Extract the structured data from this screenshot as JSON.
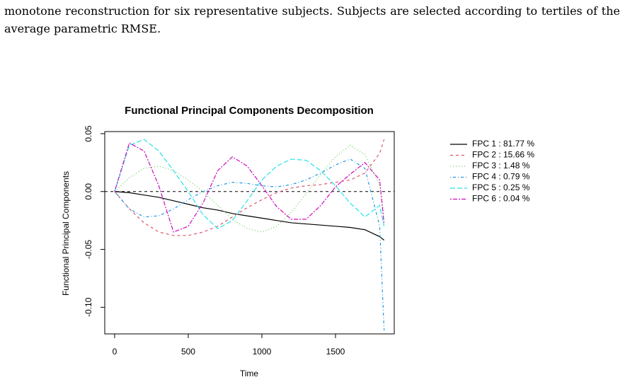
{
  "text": {
    "lines": [
      "monotone reconstruction for six representative subjects. Subjects are selected according to tertiles of the",
      "average parametric RMSE."
    ]
  },
  "chart_data": {
    "type": "line",
    "title": "Functional Principal Components Decomposition",
    "xlabel": "Time",
    "ylabel": "Functional Principal Components",
    "x": [
      0,
      100,
      200,
      300,
      400,
      500,
      600,
      700,
      800,
      900,
      1000,
      1100,
      1200,
      1300,
      1400,
      1500,
      1600,
      1700,
      1800,
      1830
    ],
    "series": [
      {
        "name": "FPC 1 : 81.77 %",
        "color": "#000000",
        "dash": "",
        "values": [
          0,
          -0.001,
          -0.003,
          -0.005,
          -0.008,
          -0.011,
          -0.014,
          -0.016,
          -0.019,
          -0.021,
          -0.023,
          -0.025,
          -0.027,
          -0.028,
          -0.029,
          -0.03,
          -0.031,
          -0.033,
          -0.039,
          -0.042
        ]
      },
      {
        "name": "FPC 2 : 15.66 %",
        "color": "#DF536B",
        "dash": "4 4",
        "values": [
          0,
          -0.015,
          -0.027,
          -0.035,
          -0.038,
          -0.038,
          -0.035,
          -0.03,
          -0.022,
          -0.014,
          -0.007,
          -0.001,
          0.003,
          0.005,
          0.006,
          0.008,
          0.01,
          0.016,
          0.033,
          0.045
        ]
      },
      {
        "name": "FPC 3 : 1.48 %",
        "color": "#61D04F",
        "dash": "1 3",
        "values": [
          0,
          0.012,
          0.02,
          0.022,
          0.018,
          0.01,
          0,
          -0.012,
          -0.024,
          -0.032,
          -0.035,
          -0.03,
          -0.018,
          -0.002,
          0.015,
          0.03,
          0.04,
          0.032,
          0.005,
          -0.02
        ]
      },
      {
        "name": "FPC 4 : 0.79 %",
        "color": "#2297E6",
        "dash": "1 3 4 3",
        "values": [
          0,
          -0.015,
          -0.022,
          -0.021,
          -0.015,
          -0.007,
          0,
          0.005,
          0.008,
          0.007,
          0.005,
          0.004,
          0.006,
          0.01,
          0.016,
          0.023,
          0.028,
          0.02,
          -0.03,
          -0.12
        ]
      },
      {
        "name": "FPC 5 : 0.25 %",
        "color": "#28E2E5",
        "dash": "7 3",
        "values": [
          0,
          0.04,
          0.045,
          0.035,
          0.018,
          0,
          -0.02,
          -0.032,
          -0.025,
          -0.008,
          0.01,
          0.022,
          0.028,
          0.027,
          0.018,
          0.005,
          -0.01,
          -0.022,
          -0.012,
          -0.03
        ]
      },
      {
        "name": "FPC 6 : 0.04 %",
        "color": "#CD0BBC",
        "dash": "2 2 6 2",
        "values": [
          0,
          0.042,
          0.035,
          0.005,
          -0.035,
          -0.03,
          -0.01,
          0.018,
          0.03,
          0.022,
          0.005,
          -0.013,
          -0.024,
          -0.024,
          -0.012,
          0.004,
          0.015,
          0.025,
          0.01,
          -0.028
        ]
      }
    ],
    "hline": 0,
    "xlim": [
      -67,
      1899
    ],
    "ylim": [
      -0.123,
      0.0518
    ],
    "xticks": [
      0,
      500,
      1000,
      1500
    ],
    "yticks": [
      {
        "value": -0.1,
        "label": "-0.10"
      },
      -0.05,
      {
        "value": 0,
        "label": "0.00"
      },
      0.05
    ]
  }
}
